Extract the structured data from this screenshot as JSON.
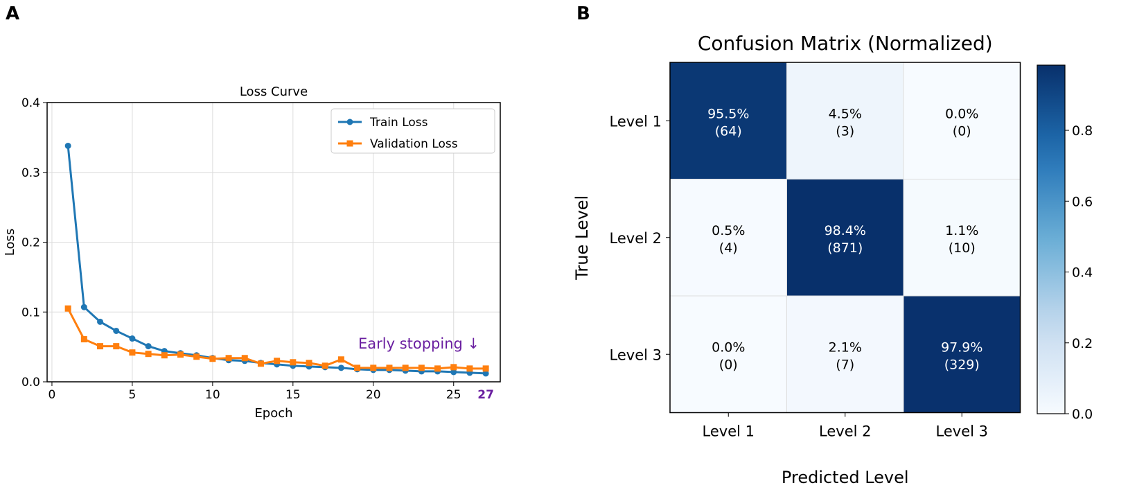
{
  "panel_labels": [
    "A",
    "B"
  ],
  "chart_data": [
    {
      "type": "line",
      "title": "Loss Curve",
      "xlabel": "Epoch",
      "ylabel": "Loss",
      "xlim": [
        -0.3,
        27.9
      ],
      "ylim": [
        0,
        0.4
      ],
      "xticks": [
        0,
        5,
        10,
        15,
        20,
        25
      ],
      "yticks": [
        0.0,
        0.1,
        0.2,
        0.3,
        0.4
      ],
      "grid": true,
      "legend_position": "top-right",
      "x": [
        1,
        2,
        3,
        4,
        5,
        6,
        7,
        8,
        9,
        10,
        11,
        12,
        13,
        14,
        15,
        16,
        17,
        18,
        19,
        20,
        21,
        22,
        23,
        24,
        25,
        26,
        27
      ],
      "series": [
        {
          "name": "Train Loss",
          "color": "#1f77b4",
          "marker": "circle",
          "values": [
            0.338,
            0.107,
            0.086,
            0.073,
            0.062,
            0.051,
            0.044,
            0.041,
            0.038,
            0.034,
            0.031,
            0.03,
            0.027,
            0.025,
            0.023,
            0.022,
            0.021,
            0.02,
            0.018,
            0.017,
            0.017,
            0.016,
            0.015,
            0.015,
            0.014,
            0.013,
            0.012
          ]
        },
        {
          "name": "Validation Loss",
          "color": "#ff7f0e",
          "marker": "square",
          "values": [
            0.105,
            0.061,
            0.051,
            0.051,
            0.042,
            0.04,
            0.038,
            0.039,
            0.036,
            0.033,
            0.034,
            0.034,
            0.026,
            0.03,
            0.028,
            0.027,
            0.023,
            0.032,
            0.02,
            0.02,
            0.02,
            0.02,
            0.02,
            0.019,
            0.021,
            0.019,
            0.019
          ]
        }
      ],
      "annotations": [
        {
          "text": "Early stopping ↓",
          "color": "#6a1fa0"
        },
        {
          "text": "27",
          "color": "#6a1fa0",
          "at_epoch": 27
        }
      ]
    },
    {
      "type": "heatmap",
      "title": "Confusion Matrix (Normalized)",
      "xlabel": "Predicted Level",
      "ylabel": "True Level",
      "row_labels": [
        "Level 1",
        "Level 2",
        "Level 3"
      ],
      "col_labels": [
        "Level 1",
        "Level 2",
        "Level 3"
      ],
      "values": [
        [
          0.955,
          0.045,
          0.0
        ],
        [
          0.005,
          0.984,
          0.011
        ],
        [
          0.0,
          0.021,
          0.979
        ]
      ],
      "cell_text": [
        [
          "95.5%",
          "4.5%",
          "0.0%"
        ],
        [
          "0.5%",
          "98.4%",
          "1.1%"
        ],
        [
          "0.0%",
          "2.1%",
          "97.9%"
        ]
      ],
      "counts": [
        [
          "(64)",
          "(3)",
          "(0)"
        ],
        [
          "(4)",
          "(871)",
          "(10)"
        ],
        [
          "(0)",
          "(7)",
          "(329)"
        ]
      ],
      "colorbar": {
        "range": [
          0,
          0.984
        ],
        "ticks": [
          "0.0",
          "0.2",
          "0.4",
          "0.6",
          "0.8"
        ],
        "colormap": "Blues"
      }
    }
  ]
}
